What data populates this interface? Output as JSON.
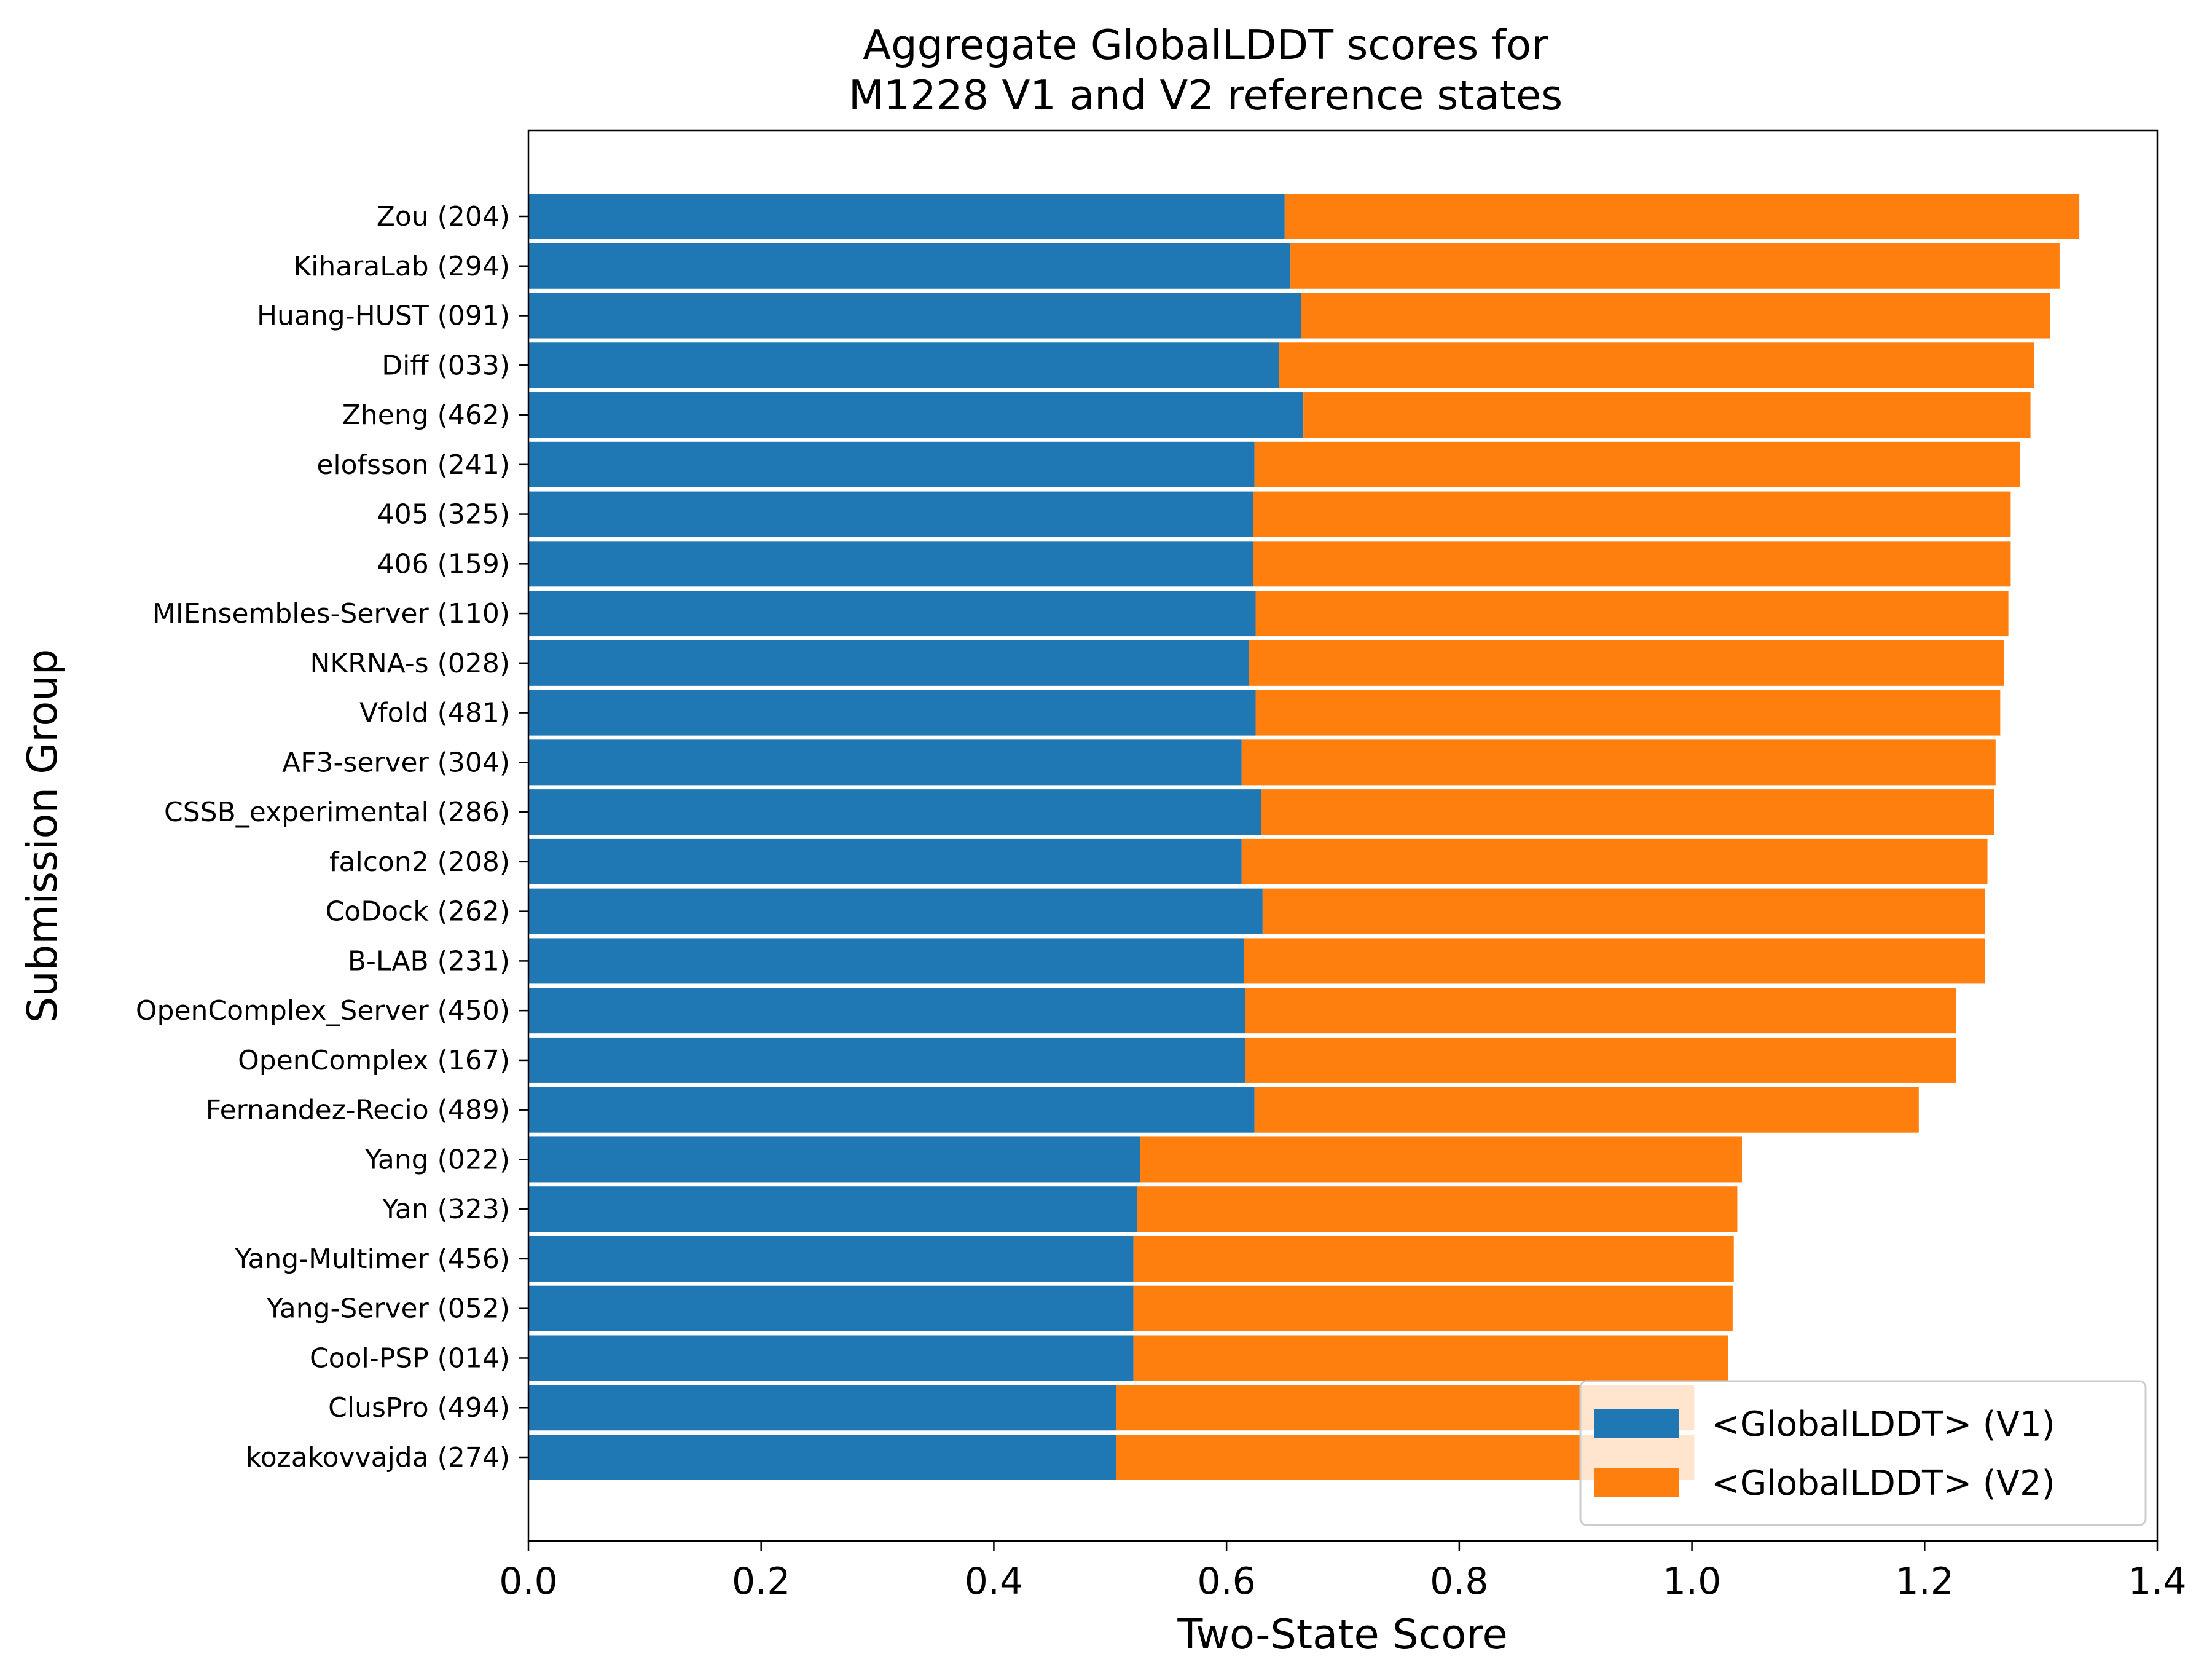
{
  "chart_data": {
    "type": "bar",
    "orientation": "horizontal",
    "stacked": true,
    "title": [
      "Aggregate GlobalLDDT scores for",
      "M1228 V1 and V2 reference states"
    ],
    "xlabel": "Two-State Score",
    "ylabel": "Submission Group",
    "xlim": [
      0.0,
      1.4
    ],
    "xticks": [
      "0.0",
      "0.2",
      "0.4",
      "0.6",
      "0.8",
      "1.0",
      "1.2",
      "1.4"
    ],
    "legend_position": "bottom-right",
    "grid": false,
    "categories": [
      "Zou (204)",
      "KiharaLab (294)",
      "Huang-HUST (091)",
      "Diff (033)",
      "Zheng (462)",
      "elofsson (241)",
      "405 (325)",
      "406 (159)",
      "MIEnsembles-Server (110)",
      "NKRNA-s (028)",
      "Vfold (481)",
      "AF3-server (304)",
      "CSSB_experimental (286)",
      "falcon2 (208)",
      "CoDock (262)",
      "B-LAB (231)",
      "OpenComplex_Server (450)",
      "OpenComplex (167)",
      "Fernandez-Recio (489)",
      "Yang (022)",
      "Yan (323)",
      "Yang-Multimer (456)",
      "Yang-Server (052)",
      "Cool-PSP (014)",
      "ClusPro (494)",
      "kozakovvajda (274)"
    ],
    "series": [
      {
        "name": "<GlobalLDDT> (V1)",
        "color": "#1f77b4",
        "values": [
          0.65,
          0.655,
          0.664,
          0.645,
          0.666,
          0.624,
          0.623,
          0.623,
          0.625,
          0.619,
          0.625,
          0.613,
          0.63,
          0.613,
          0.631,
          0.615,
          0.616,
          0.616,
          0.624,
          0.526,
          0.523,
          0.52,
          0.52,
          0.52,
          0.505,
          0.505
        ]
      },
      {
        "name": "<GlobalLDDT> (V2)",
        "color": "#ff7f0e",
        "values": [
          0.683,
          0.661,
          0.644,
          0.649,
          0.625,
          0.658,
          0.651,
          0.651,
          0.647,
          0.649,
          0.64,
          0.648,
          0.63,
          0.641,
          0.621,
          0.637,
          0.611,
          0.611,
          0.571,
          0.517,
          0.516,
          0.516,
          0.515,
          0.511,
          0.497,
          0.497
        ]
      }
    ]
  }
}
